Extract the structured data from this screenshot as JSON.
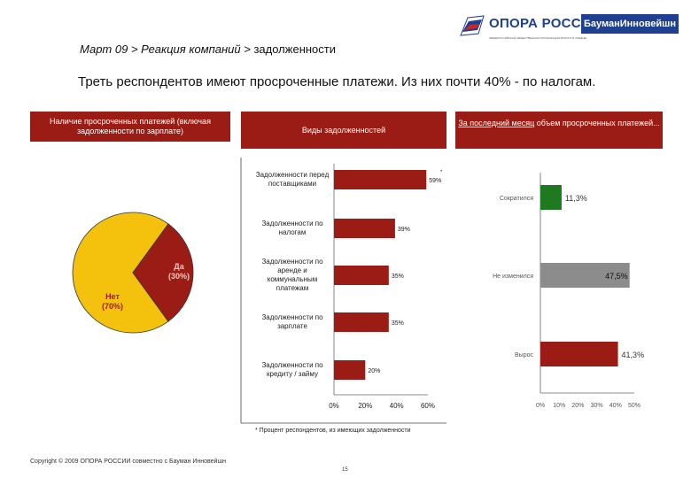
{
  "header": {
    "logo_main": "ОПОРА РОССИИ",
    "logo_sub": "ОБЩЕРОССИЙСКАЯ ОБЩЕСТВЕННАЯ ОРГАНИЗАЦИЯ МАЛОГО И СРЕДНЕГО ПРЕДПРИНИМАТЕЛЬСТВА",
    "partner": "БауманИнновейшн",
    "breadcrumb_italic": "Март 09 > Реакция компаний >",
    "breadcrumb_rest": " задолженности"
  },
  "headline": "Треть респондентов имеют просроченные платежи. Из них почти 40% - по налогам.",
  "panels": {
    "left_title": "Наличие просроченных платежей (включая задолженности по зарплате)",
    "mid_title": "Виды задолженностей",
    "right_title_underlined": "За последний месяц",
    "right_title_rest": " объем просроченных платежей..."
  },
  "footnote": "* Процент респондентов, из имеющих задолженности",
  "copyright": "Copyright © 2009 ОПОРА РОССИИ совместно с Бауман Инновейшн",
  "page_number": "15",
  "colors": {
    "accent": "#9b1c14",
    "pie_no": "#f4c20d",
    "up": "#9b1c14",
    "down": "#1f7a1f",
    "same": "#8c8c8c",
    "brand": "#1f3f8f"
  },
  "chart_data": [
    {
      "type": "pie",
      "categories": [
        "Нет",
        "Да"
      ],
      "values": [
        70,
        30
      ],
      "labels": [
        "Нет\n(70%)",
        "Да\n(30%)"
      ]
    },
    {
      "type": "bar",
      "orientation": "horizontal",
      "categories": [
        "Задолженности перед поставщиками",
        "Задолженности по налогам",
        "Задолженности по аренде и коммунальным платежам",
        "Задолженности по зарплате",
        "Задолженности по кредиту / займу"
      ],
      "values": [
        59,
        39,
        35,
        35,
        20
      ],
      "value_labels": [
        "59%",
        "39%",
        "35%",
        "35%",
        "20%"
      ],
      "star": "*",
      "xlim": [
        0,
        60
      ],
      "xticks": [
        "0%",
        "20%",
        "40%",
        "60%"
      ]
    },
    {
      "type": "bar",
      "orientation": "horizontal",
      "categories": [
        "Сократился",
        "Не изменился",
        "Вырос"
      ],
      "values": [
        11.3,
        47.5,
        41.3
      ],
      "value_labels": [
        "11,3%",
        "47,5%",
        "41,3%"
      ],
      "xlim": [
        0,
        50
      ],
      "xticks": [
        "0%",
        "10%",
        "20%",
        "30%",
        "40%",
        "50%"
      ]
    }
  ]
}
